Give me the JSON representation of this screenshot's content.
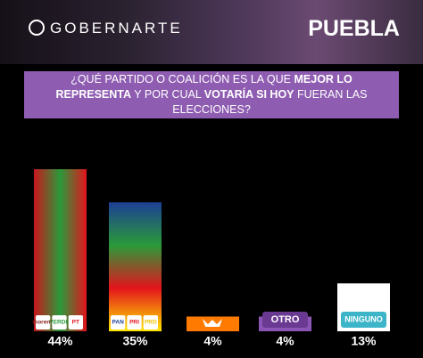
{
  "header": {
    "brand": "GOBERNARTE",
    "state": "PUEBLA",
    "question": [
      "¿QUÉ PARTIDO O COALICIÓN ES LA QUE ",
      "MEJOR LO REPRESENTA",
      " Y POR CUAL ",
      "VOTARÍA SI HOY",
      " FUERAN LAS ELECCIONES?"
    ]
  },
  "chart_data": {
    "type": "bar",
    "categories": [
      [
        "morena",
        "VERDE",
        "PT"
      ],
      [
        "PAN",
        "PRI",
        "PRD"
      ],
      null,
      "OTRO",
      "NINGUNO"
    ],
    "values": [
      44,
      35,
      4,
      4,
      13
    ],
    "value_labels": [
      "44%",
      "35%",
      "4%",
      "4%",
      "13%"
    ],
    "colors": [
      [
        "#c8161d",
        "#2a9a3a",
        "#e3141c"
      ],
      [
        "#1c3f94",
        "#2a9a3a",
        "#e3141c",
        "#ffe600"
      ],
      "#ff7a00",
      "#8b55b5",
      "#ffffff"
    ]
  }
}
